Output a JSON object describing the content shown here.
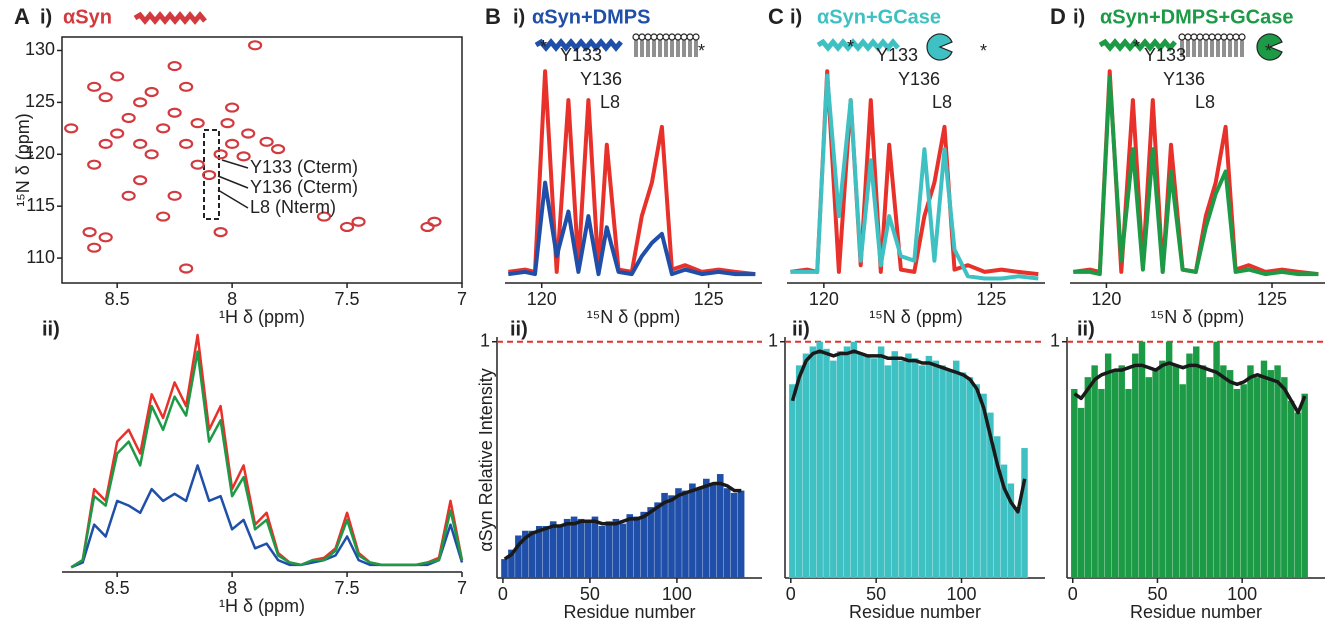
{
  "chart_data": [
    {
      "type": "scatter",
      "panel": "A",
      "subpanel": "i)",
      "title": "αSyn",
      "color": "#d33a3f",
      "xlabel": "¹H δ (ppm)",
      "ylabel": "¹⁵N δ (ppm)",
      "xlim": [
        8.74,
        7.0
      ],
      "ylim": [
        107.6,
        131.3
      ],
      "xticks": [
        8.5,
        8,
        7.5,
        7
      ],
      "yticks": [
        110,
        115,
        120,
        125,
        130
      ],
      "x": [
        8.6,
        8.62,
        8.55,
        8.2,
        8.05,
        8.3,
        8.45,
        8.4,
        8.25,
        8.6,
        8.7,
        8.55,
        8.5,
        8.45,
        8.4,
        8.35,
        8.3,
        8.25,
        8.2,
        8.15,
        8.1,
        8.05,
        8.0,
        7.95,
        7.93,
        8.02,
        8.15,
        8.4,
        8.55,
        8.5,
        8.35,
        8.2,
        8.25,
        8.6,
        8.0,
        7.9,
        7.45,
        7.5,
        7.6,
        7.8,
        7.85,
        7.15,
        7.12
      ],
      "values": [
        111,
        112.5,
        112,
        109,
        112.5,
        114,
        116,
        117.5,
        116,
        119,
        122.5,
        121,
        122,
        123.5,
        121,
        120,
        122.5,
        124,
        121,
        119,
        118,
        120,
        121,
        119.8,
        122,
        123,
        123,
        125,
        125.5,
        127.5,
        126,
        126.5,
        128.5,
        126.5,
        124.5,
        130.5,
        113.5,
        113,
        114,
        120.5,
        121.2,
        113,
        113.5
      ],
      "annotations": [
        "Y133 (Cterm)",
        "Y136 (Cterm)",
        "L8 (Nterm)"
      ]
    },
    {
      "type": "line",
      "subpanel": "ii)",
      "xlabel": "¹H δ (ppm)",
      "xlim": [
        8.74,
        7.0
      ],
      "ylim": [
        0,
        1
      ],
      "xticks": [
        8.5,
        8,
        7.5,
        7
      ],
      "x": [
        8.7,
        8.65,
        8.6,
        8.55,
        8.5,
        8.45,
        8.4,
        8.35,
        8.3,
        8.25,
        8.2,
        8.15,
        8.1,
        8.05,
        8.0,
        7.95,
        7.9,
        7.85,
        7.8,
        7.75,
        7.7,
        7.65,
        7.6,
        7.55,
        7.5,
        7.45,
        7.4,
        7.35,
        7.3,
        7.25,
        7.2,
        7.15,
        7.1,
        7.05,
        7.0
      ],
      "series": [
        {
          "color": "#1f4fa8",
          "values": [
            0.02,
            0.04,
            0.2,
            0.15,
            0.3,
            0.28,
            0.25,
            0.35,
            0.3,
            0.33,
            0.3,
            0.45,
            0.3,
            0.32,
            0.18,
            0.22,
            0.1,
            0.12,
            0.05,
            0.03,
            0.03,
            0.04,
            0.05,
            0.07,
            0.15,
            0.05,
            0.03,
            0.03,
            0.03,
            0.03,
            0.03,
            0.03,
            0.05,
            0.2,
            0.04
          ]
        },
        {
          "color": "#e8312a",
          "values": [
            0.02,
            0.05,
            0.35,
            0.3,
            0.55,
            0.6,
            0.5,
            0.75,
            0.65,
            0.8,
            0.7,
            1.0,
            0.6,
            0.7,
            0.35,
            0.45,
            0.2,
            0.25,
            0.08,
            0.04,
            0.03,
            0.05,
            0.06,
            0.1,
            0.25,
            0.08,
            0.04,
            0.03,
            0.03,
            0.03,
            0.03,
            0.04,
            0.06,
            0.3,
            0.05
          ]
        },
        {
          "color": "#1c9a46",
          "values": [
            0.02,
            0.05,
            0.32,
            0.28,
            0.5,
            0.55,
            0.45,
            0.7,
            0.6,
            0.74,
            0.66,
            0.93,
            0.55,
            0.64,
            0.32,
            0.4,
            0.18,
            0.22,
            0.07,
            0.04,
            0.03,
            0.05,
            0.05,
            0.09,
            0.22,
            0.07,
            0.04,
            0.03,
            0.03,
            0.03,
            0.03,
            0.04,
            0.05,
            0.26,
            0.05
          ]
        }
      ]
    },
    {
      "type": "line",
      "panel": "B",
      "subpanel": "i)",
      "title": "αSyn+DMPS",
      "xlabel": "¹⁵N δ (ppm)",
      "xlim": [
        118.9,
        126.6
      ],
      "ylim": [
        0,
        1
      ],
      "xticks": [
        120,
        125
      ],
      "x": [
        119.0,
        119.5,
        119.8,
        120.1,
        120.45,
        120.8,
        121.1,
        121.4,
        121.7,
        121.95,
        122.3,
        122.7,
        123.0,
        123.3,
        123.6,
        123.9,
        124.3,
        124.8,
        125.3,
        125.8,
        126.4
      ],
      "series": [
        {
          "color": "#e8312a",
          "values": [
            0.05,
            0.06,
            0.05,
            0.95,
            0.05,
            0.82,
            0.08,
            0.82,
            0.05,
            0.62,
            0.06,
            0.05,
            0.3,
            0.45,
            0.7,
            0.06,
            0.08,
            0.05,
            0.06,
            0.05,
            0.04
          ]
        },
        {
          "color": "#1f4fa8",
          "values": [
            0.04,
            0.05,
            0.04,
            0.45,
            0.12,
            0.32,
            0.05,
            0.3,
            0.04,
            0.25,
            0.05,
            0.04,
            0.12,
            0.18,
            0.22,
            0.04,
            0.06,
            0.04,
            0.05,
            0.04,
            0.04
          ]
        }
      ],
      "annotations": [
        "*",
        "Y133",
        "Y136",
        "L8",
        "*"
      ]
    },
    {
      "type": "bar",
      "subpanel": "ii)",
      "xlabel": "Residue number",
      "ylabel": "αSyn Relative Intensity",
      "xlim": [
        -3.4,
        148.9
      ],
      "ylim": [
        0,
        1.02
      ],
      "xticks": [
        0,
        50,
        100
      ],
      "yticks": [
        1
      ],
      "grid": true,
      "x": [
        1,
        5,
        9,
        13,
        17,
        21,
        25,
        29,
        33,
        37,
        41,
        45,
        49,
        53,
        57,
        61,
        65,
        69,
        73,
        77,
        81,
        85,
        89,
        93,
        97,
        101,
        105,
        109,
        113,
        117,
        121,
        125,
        129,
        133,
        137
      ],
      "series": [
        {
          "type": "bar",
          "color": "#1f4fa8",
          "values": [
            0.08,
            0.12,
            0.18,
            0.2,
            0.2,
            0.22,
            0.22,
            0.24,
            0.22,
            0.25,
            0.26,
            0.25,
            0.24,
            0.26,
            0.22,
            0.24,
            0.25,
            0.23,
            0.27,
            0.26,
            0.28,
            0.3,
            0.32,
            0.36,
            0.35,
            0.38,
            0.37,
            0.4,
            0.38,
            0.42,
            0.4,
            0.44,
            0.38,
            0.36,
            0.37
          ]
        },
        {
          "type": "line",
          "color": "#1a1a1a",
          "values": [
            0.08,
            0.1,
            0.14,
            0.17,
            0.19,
            0.2,
            0.21,
            0.22,
            0.22,
            0.23,
            0.23,
            0.24,
            0.24,
            0.24,
            0.23,
            0.23,
            0.23,
            0.24,
            0.25,
            0.25,
            0.26,
            0.28,
            0.3,
            0.32,
            0.33,
            0.35,
            0.36,
            0.37,
            0.38,
            0.39,
            0.4,
            0.4,
            0.39,
            0.37,
            0.37
          ]
        }
      ]
    },
    {
      "type": "line",
      "panel": "C",
      "subpanel": "i)",
      "title": "αSyn+GCase",
      "xlabel": "¹⁵N δ (ppm)",
      "xlim": [
        118.9,
        126.6
      ],
      "ylim": [
        0,
        1
      ],
      "xticks": [
        120,
        125
      ],
      "x": [
        119.0,
        119.5,
        119.8,
        120.1,
        120.45,
        120.8,
        121.1,
        121.4,
        121.7,
        121.95,
        122.3,
        122.7,
        123.0,
        123.3,
        123.6,
        123.9,
        124.3,
        124.8,
        125.3,
        125.8,
        126.4
      ],
      "series": [
        {
          "color": "#e8312a",
          "values": [
            0.05,
            0.06,
            0.05,
            0.95,
            0.05,
            0.82,
            0.08,
            0.82,
            0.05,
            0.62,
            0.06,
            0.05,
            0.3,
            0.45,
            0.7,
            0.06,
            0.08,
            0.05,
            0.06,
            0.05,
            0.04
          ]
        },
        {
          "color": "#3fc1c3",
          "values": [
            0.05,
            0.05,
            0.05,
            0.93,
            0.3,
            0.82,
            0.1,
            0.55,
            0.08,
            0.3,
            0.12,
            0.1,
            0.6,
            0.1,
            0.6,
            0.15,
            0.03,
            0.02,
            0.02,
            0.03,
            0.02
          ]
        }
      ],
      "annotations": [
        "*",
        "Y133",
        "Y136",
        "L8",
        "*"
      ]
    },
    {
      "type": "bar",
      "subpanel": "ii)",
      "xlabel": "Residue number",
      "xlim": [
        -3.4,
        148.9
      ],
      "ylim": [
        0,
        1.02
      ],
      "xticks": [
        0,
        50,
        100
      ],
      "yticks": [
        1
      ],
      "grid": true,
      "x": [
        1,
        5,
        9,
        13,
        17,
        21,
        25,
        29,
        33,
        37,
        41,
        45,
        49,
        53,
        57,
        61,
        65,
        69,
        73,
        77,
        81,
        85,
        89,
        93,
        97,
        101,
        105,
        109,
        113,
        117,
        121,
        125,
        129,
        133,
        137
      ],
      "series": [
        {
          "type": "bar",
          "color": "#3fc1c3",
          "values": [
            0.82,
            0.9,
            0.95,
            0.98,
            1.0,
            0.97,
            0.92,
            0.96,
            0.98,
            1.0,
            0.95,
            0.94,
            0.93,
            0.98,
            0.9,
            0.96,
            0.92,
            0.95,
            0.93,
            0.9,
            0.94,
            0.92,
            0.9,
            0.88,
            0.92,
            0.87,
            0.85,
            0.82,
            0.78,
            0.7,
            0.6,
            0.48,
            0.4,
            0.3,
            0.55
          ]
        },
        {
          "type": "line",
          "color": "#1a1a1a",
          "values": [
            0.75,
            0.85,
            0.92,
            0.95,
            0.96,
            0.95,
            0.94,
            0.95,
            0.95,
            0.96,
            0.95,
            0.94,
            0.94,
            0.94,
            0.93,
            0.93,
            0.93,
            0.92,
            0.92,
            0.91,
            0.91,
            0.9,
            0.89,
            0.88,
            0.87,
            0.86,
            0.84,
            0.8,
            0.72,
            0.6,
            0.48,
            0.38,
            0.32,
            0.28,
            0.42
          ]
        }
      ]
    },
    {
      "type": "line",
      "panel": "D",
      "subpanel": "i)",
      "title": "αSyn+DMPS+GCase",
      "xlabel": "¹⁵N δ (ppm)",
      "xlim": [
        118.9,
        126.6
      ],
      "ylim": [
        0,
        1
      ],
      "xticks": [
        120,
        125
      ],
      "x": [
        119.0,
        119.5,
        119.8,
        120.1,
        120.45,
        120.8,
        121.1,
        121.4,
        121.7,
        121.95,
        122.3,
        122.7,
        123.0,
        123.3,
        123.6,
        123.9,
        124.3,
        124.8,
        125.3,
        125.8,
        126.4
      ],
      "series": [
        {
          "color": "#e8312a",
          "values": [
            0.05,
            0.06,
            0.05,
            0.95,
            0.05,
            0.82,
            0.08,
            0.82,
            0.05,
            0.62,
            0.06,
            0.05,
            0.3,
            0.45,
            0.7,
            0.06,
            0.08,
            0.05,
            0.06,
            0.05,
            0.04
          ]
        },
        {
          "color": "#1c9a46",
          "values": [
            0.05,
            0.05,
            0.04,
            0.92,
            0.1,
            0.6,
            0.06,
            0.6,
            0.05,
            0.5,
            0.06,
            0.05,
            0.25,
            0.4,
            0.5,
            0.05,
            0.06,
            0.04,
            0.05,
            0.04,
            0.04
          ]
        }
      ],
      "annotations": [
        "*",
        "Y133",
        "Y136",
        "L8",
        "*"
      ]
    },
    {
      "type": "bar",
      "subpanel": "ii)",
      "xlabel": "Residue number",
      "xlim": [
        -3.4,
        148.9
      ],
      "ylim": [
        0,
        1.02
      ],
      "xticks": [
        0,
        50,
        100
      ],
      "yticks": [
        1
      ],
      "grid": true,
      "x": [
        1,
        5,
        9,
        13,
        17,
        21,
        25,
        29,
        33,
        37,
        41,
        45,
        49,
        53,
        57,
        61,
        65,
        69,
        73,
        77,
        81,
        85,
        89,
        93,
        97,
        101,
        105,
        109,
        113,
        117,
        121,
        125,
        129,
        133,
        137
      ],
      "series": [
        {
          "type": "bar",
          "color": "#1c9a46",
          "values": [
            0.8,
            0.72,
            0.85,
            0.9,
            0.8,
            0.95,
            0.88,
            0.9,
            0.8,
            0.95,
            1.0,
            0.85,
            0.88,
            0.92,
            1.0,
            0.9,
            0.82,
            0.95,
            0.98,
            0.9,
            0.85,
            1.0,
            0.9,
            0.88,
            0.8,
            0.82,
            0.9,
            0.85,
            0.92,
            0.88,
            0.9,
            0.85,
            0.75,
            0.7,
            0.78
          ]
        },
        {
          "type": "line",
          "color": "#1a1a1a",
          "values": [
            0.78,
            0.76,
            0.8,
            0.84,
            0.86,
            0.87,
            0.88,
            0.88,
            0.89,
            0.9,
            0.9,
            0.89,
            0.88,
            0.9,
            0.91,
            0.9,
            0.89,
            0.9,
            0.9,
            0.89,
            0.88,
            0.87,
            0.85,
            0.83,
            0.82,
            0.83,
            0.85,
            0.86,
            0.85,
            0.84,
            0.83,
            0.8,
            0.75,
            0.7,
            0.77
          ]
        }
      ]
    }
  ]
}
